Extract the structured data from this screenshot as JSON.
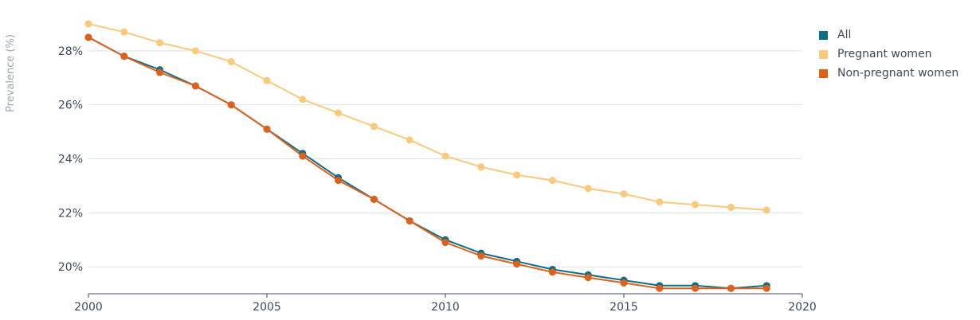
{
  "chart_data": {
    "type": "line",
    "ylabel": "Prevalence (%)",
    "xlabel": "",
    "x": [
      2000,
      2001,
      2002,
      2003,
      2004,
      2005,
      2006,
      2007,
      2008,
      2009,
      2010,
      2011,
      2012,
      2013,
      2014,
      2015,
      2016,
      2017,
      2018,
      2019
    ],
    "xlim": [
      2000,
      2020
    ],
    "ylim": [
      19.0,
      29.0
    ],
    "x_ticks": [
      2000,
      2005,
      2010,
      2015,
      2020
    ],
    "y_ticks": [
      20,
      22,
      24,
      26,
      28
    ],
    "y_tick_labels": [
      "20%",
      "22%",
      "24%",
      "26%",
      "28%"
    ],
    "grid": "horizontal",
    "legend_position": "top-right",
    "series": [
      {
        "name": "All",
        "color": "#0f6e86",
        "values": [
          28.5,
          27.8,
          27.3,
          26.7,
          26.0,
          25.1,
          24.2,
          23.3,
          22.5,
          21.7,
          21.0,
          20.5,
          20.2,
          19.9,
          19.7,
          19.5,
          19.3,
          19.3,
          19.2,
          19.3
        ]
      },
      {
        "name": "Pregnant women",
        "color": "#fbc97b",
        "values": [
          29.0,
          28.7,
          28.3,
          28.0,
          27.6,
          26.9,
          26.2,
          25.7,
          25.2,
          24.7,
          24.1,
          23.7,
          23.4,
          23.2,
          22.9,
          22.7,
          22.4,
          22.3,
          22.2,
          22.1
        ]
      },
      {
        "name": "Non-pregnant women",
        "color": "#e0601a",
        "values": [
          28.5,
          27.8,
          27.2,
          26.7,
          26.0,
          25.1,
          24.1,
          23.2,
          22.5,
          21.7,
          20.9,
          20.4,
          20.1,
          19.8,
          19.6,
          19.4,
          19.2,
          19.2,
          19.2,
          19.2
        ]
      }
    ]
  }
}
